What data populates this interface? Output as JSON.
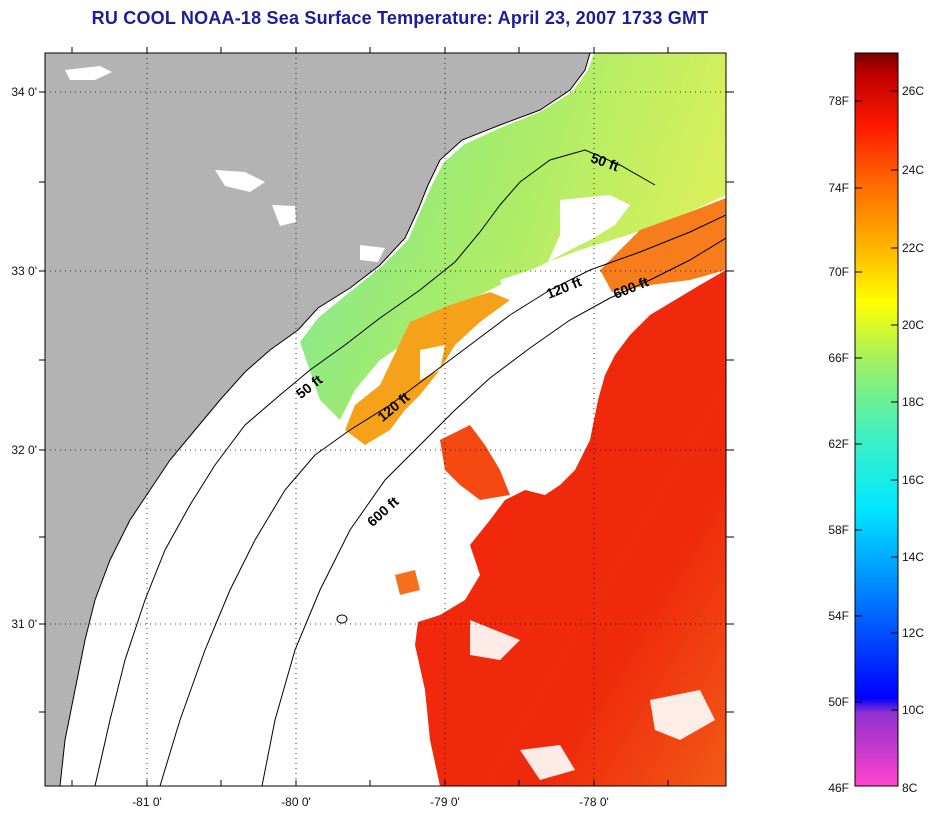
{
  "title": "RU COOL  NOAA-18  Sea Surface Temperature:  April 23, 2007 1733 GMT",
  "map": {
    "x_ticks": [
      "-81 0'",
      "-80 0'",
      "-79 0'",
      "-78 0'"
    ],
    "y_ticks": [
      "34 0'",
      "33 0'",
      "32 0'",
      "31 0'"
    ],
    "contours": [
      {
        "label": "50 ft"
      },
      {
        "label": "50 ft"
      },
      {
        "label": "120 ft"
      },
      {
        "label": "120 ft"
      },
      {
        "label": "600 ft"
      },
      {
        "label": "600 ft"
      }
    ]
  },
  "colorbar": {
    "fahrenheit_labels": [
      "78F",
      "74F",
      "70F",
      "66F",
      "62F",
      "58F",
      "54F",
      "50F",
      "46F"
    ],
    "celsius_labels": [
      "26C",
      "24C",
      "22C",
      "20C",
      "18C",
      "16C",
      "14C",
      "12C",
      "10C",
      "8C"
    ],
    "range_celsius": [
      8,
      27
    ],
    "colors": [
      "#ff44cc",
      "#9030d0",
      "#0000ff",
      "#0090ff",
      "#00e8ff",
      "#40f0c0",
      "#a0f060",
      "#ffff00",
      "#ffb000",
      "#ff6a00",
      "#ff1a00",
      "#7a0000"
    ]
  },
  "colors": {
    "land": "#b3b3b3",
    "title": "#1c1c9c",
    "ocean_warm": "#f22a0c",
    "ocean_orange": "#f47a1a",
    "ocean_green": "#8fe07a"
  }
}
